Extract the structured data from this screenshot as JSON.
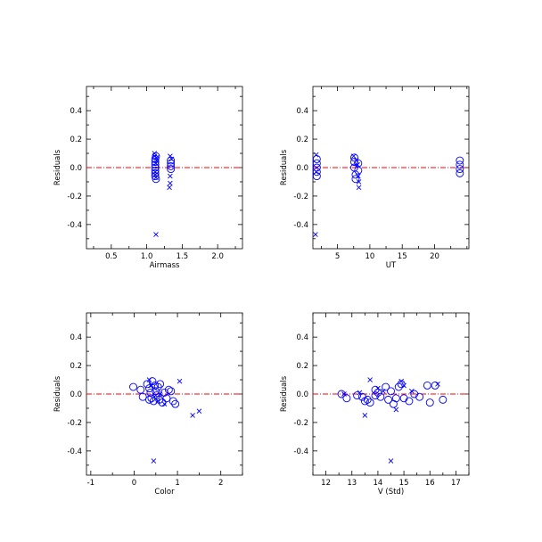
{
  "colors": {
    "points": "#0000ff",
    "zero_line": "#ff0000",
    "frame": "#000000"
  },
  "chart_data": [
    {
      "type": "scatter",
      "xlabel": "Airmass",
      "ylabel": "Residuals",
      "xlim": [
        0.15,
        2.35
      ],
      "ylim": [
        -0.57,
        0.57
      ],
      "xticks": [
        0.5,
        1.0,
        1.5,
        2.0
      ],
      "xtick_labels": [
        "0.5",
        "1.0",
        "1.5",
        "2.0"
      ],
      "yticks": [
        -0.4,
        -0.2,
        0.0,
        0.2,
        0.4
      ],
      "ytick_labels": [
        "-0.4",
        "-0.2",
        "0.0",
        "0.2",
        "0.4"
      ],
      "zero_line": 0.0,
      "circles": [
        [
          1.12,
          0.06
        ],
        [
          1.12,
          0.04
        ],
        [
          1.12,
          0.02
        ],
        [
          1.12,
          0.0
        ],
        [
          1.12,
          -0.02
        ],
        [
          1.12,
          -0.04
        ],
        [
          1.12,
          -0.06
        ],
        [
          1.13,
          0.08
        ],
        [
          1.13,
          -0.08
        ],
        [
          1.34,
          0.03
        ],
        [
          1.34,
          0.01
        ],
        [
          1.34,
          -0.01
        ],
        [
          1.34,
          0.05
        ]
      ],
      "crosses": [
        [
          1.11,
          0.1
        ],
        [
          1.11,
          0.08
        ],
        [
          1.14,
          0.07
        ],
        [
          1.14,
          0.05
        ],
        [
          1.13,
          0.03
        ],
        [
          1.12,
          -0.03
        ],
        [
          1.12,
          -0.05
        ],
        [
          1.13,
          -0.07
        ],
        [
          1.13,
          -0.47
        ],
        [
          1.33,
          0.08
        ],
        [
          1.35,
          0.06
        ],
        [
          1.33,
          -0.06
        ],
        [
          1.33,
          -0.11
        ],
        [
          1.32,
          -0.14
        ]
      ]
    },
    {
      "type": "scatter",
      "xlabel": "UT",
      "ylabel": "Residuals",
      "xlim": [
        1.2,
        25.3
      ],
      "ylim": [
        -0.57,
        0.57
      ],
      "xticks": [
        5,
        10,
        15,
        20
      ],
      "xtick_labels": [
        "5",
        "10",
        "15",
        "20"
      ],
      "yticks": [
        -0.4,
        -0.2,
        0.0,
        0.2,
        0.4
      ],
      "ytick_labels": [
        "-0.4",
        "-0.2",
        "0.0",
        "0.2",
        "0.4"
      ],
      "zero_line": 0.0,
      "circles": [
        [
          1.8,
          0.06
        ],
        [
          1.8,
          0.03
        ],
        [
          1.8,
          0.0
        ],
        [
          1.8,
          -0.03
        ],
        [
          1.8,
          -0.06
        ],
        [
          7.6,
          0.07
        ],
        [
          7.6,
          0.04
        ],
        [
          7.6,
          0.0
        ],
        [
          7.8,
          -0.05
        ],
        [
          7.8,
          -0.08
        ],
        [
          8.2,
          0.03
        ],
        [
          8.2,
          -0.02
        ],
        [
          23.9,
          0.05
        ],
        [
          23.9,
          0.02
        ],
        [
          23.9,
          -0.01
        ],
        [
          23.9,
          -0.04
        ]
      ],
      "crosses": [
        [
          1.7,
          0.09
        ],
        [
          1.7,
          -0.03
        ],
        [
          1.6,
          -0.47
        ],
        [
          7.5,
          0.08
        ],
        [
          7.9,
          0.05
        ],
        [
          8.1,
          0.02
        ],
        [
          8.2,
          -0.06
        ],
        [
          8.3,
          -0.1
        ],
        [
          8.3,
          -0.14
        ]
      ]
    },
    {
      "type": "scatter",
      "xlabel": "Color",
      "ylabel": "Residuals",
      "xlim": [
        -1.1,
        2.5
      ],
      "ylim": [
        -0.57,
        0.57
      ],
      "xticks": [
        -1,
        0,
        1,
        2
      ],
      "xtick_labels": [
        "-1",
        "0",
        "1",
        "2"
      ],
      "yticks": [
        -0.4,
        -0.2,
        0.0,
        0.2,
        0.4
      ],
      "ytick_labels": [
        "-0.4",
        "-0.2",
        "0.0",
        "0.2",
        "0.4"
      ],
      "zero_line": 0.0,
      "circles": [
        [
          -0.02,
          0.05
        ],
        [
          0.15,
          0.03
        ],
        [
          0.2,
          -0.02
        ],
        [
          0.3,
          0.07
        ],
        [
          0.35,
          0.04
        ],
        [
          0.38,
          0.01
        ],
        [
          0.4,
          -0.03
        ],
        [
          0.42,
          0.09
        ],
        [
          0.45,
          -0.05
        ],
        [
          0.5,
          0.02
        ],
        [
          0.52,
          -0.01
        ],
        [
          0.55,
          0.05
        ],
        [
          0.58,
          -0.04
        ],
        [
          0.6,
          0.07
        ],
        [
          0.65,
          -0.06
        ],
        [
          0.7,
          0.01
        ],
        [
          0.75,
          -0.03
        ],
        [
          0.8,
          0.03
        ],
        [
          0.85,
          0.02
        ],
        [
          0.9,
          -0.05
        ],
        [
          0.95,
          -0.07
        ],
        [
          0.35,
          -0.04
        ],
        [
          0.48,
          0.06
        ]
      ],
      "crosses": [
        [
          0.35,
          0.1
        ],
        [
          0.4,
          0.06
        ],
        [
          0.5,
          -0.01
        ],
        [
          0.45,
          -0.47
        ],
        [
          0.6,
          0.0
        ],
        [
          0.55,
          -0.05
        ],
        [
          1.05,
          0.09
        ],
        [
          1.35,
          -0.15
        ],
        [
          1.5,
          -0.12
        ],
        [
          0.7,
          -0.07
        ]
      ]
    },
    {
      "type": "scatter",
      "xlabel": "V (Std)",
      "ylabel": "Residuals",
      "xlim": [
        11.5,
        17.5
      ],
      "ylim": [
        -0.57,
        0.57
      ],
      "xticks": [
        12,
        13,
        14,
        15,
        16,
        17
      ],
      "xtick_labels": [
        "12",
        "13",
        "14",
        "15",
        "16",
        "17"
      ],
      "yticks": [
        -0.4,
        -0.2,
        0.0,
        0.2,
        0.4
      ],
      "ytick_labels": [
        "-0.4",
        "-0.2",
        "0.0",
        "0.2",
        "0.4"
      ],
      "zero_line": 0.0,
      "circles": [
        [
          12.6,
          0.0
        ],
        [
          12.8,
          -0.03
        ],
        [
          13.2,
          -0.01
        ],
        [
          13.4,
          -0.02
        ],
        [
          13.5,
          -0.05
        ],
        [
          13.6,
          -0.04
        ],
        [
          13.7,
          -0.06
        ],
        [
          13.9,
          0.03
        ],
        [
          14.0,
          0.01
        ],
        [
          14.1,
          -0.02
        ],
        [
          14.3,
          0.05
        ],
        [
          14.4,
          -0.04
        ],
        [
          14.5,
          0.02
        ],
        [
          14.6,
          -0.07
        ],
        [
          14.8,
          0.05
        ],
        [
          14.9,
          0.07
        ],
        [
          15.0,
          -0.03
        ],
        [
          15.2,
          -0.05
        ],
        [
          15.4,
          0.0
        ],
        [
          15.6,
          -0.02
        ],
        [
          15.9,
          0.06
        ],
        [
          16.0,
          -0.06
        ],
        [
          16.2,
          0.06
        ],
        [
          16.5,
          -0.04
        ],
        [
          13.9,
          -0.01
        ],
        [
          14.7,
          -0.03
        ]
      ],
      "crosses": [
        [
          12.7,
          0.0
        ],
        [
          13.3,
          0.01
        ],
        [
          13.5,
          -0.15
        ],
        [
          13.7,
          0.1
        ],
        [
          14.0,
          0.04
        ],
        [
          14.2,
          0.02
        ],
        [
          14.5,
          -0.47
        ],
        [
          14.7,
          -0.11
        ],
        [
          14.9,
          0.09
        ],
        [
          15.0,
          0.06
        ],
        [
          15.3,
          0.02
        ],
        [
          16.3,
          0.07
        ]
      ]
    }
  ]
}
